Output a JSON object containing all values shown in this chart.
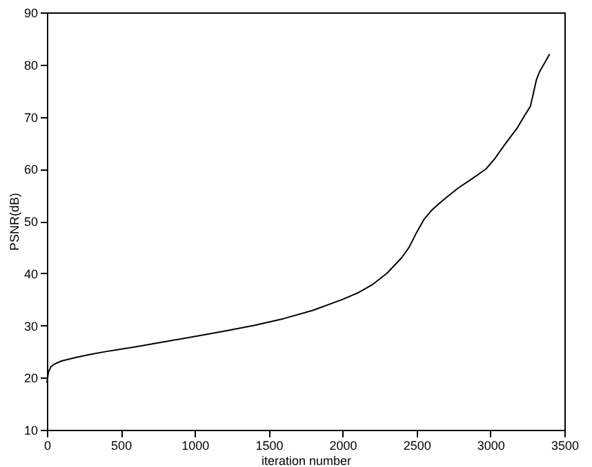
{
  "chart_data": {
    "type": "line",
    "xlabel": "iteration number",
    "ylabel": "PSNR(dB)",
    "x": [
      0,
      10,
      25,
      50,
      100,
      200,
      300,
      400,
      600,
      800,
      1000,
      1200,
      1400,
      1600,
      1800,
      2000,
      2100,
      2200,
      2300,
      2400,
      2450,
      2500,
      2550,
      2600,
      2650,
      2700,
      2780,
      2880,
      2970,
      3030,
      3100,
      3180,
      3230,
      3270,
      3290,
      3310,
      3330,
      3360,
      3400
    ],
    "series": [
      {
        "color": "#000000",
        "values": [
          19,
          21,
          22,
          22.6,
          23.2,
          23.9,
          24.5,
          25,
          25.9,
          26.9,
          27.9,
          28.9,
          30,
          31.3,
          32.9,
          35,
          36.2,
          37.8,
          40,
          43,
          45,
          47.8,
          50.3,
          52,
          53.3,
          54.5,
          56.3,
          58.2,
          60,
          62,
          64.8,
          67.8,
          70.2,
          72,
          74.5,
          77,
          78.5,
          80,
          82
        ]
      }
    ],
    "xlim": [
      0,
      3500
    ],
    "ylim": [
      10,
      90
    ],
    "xticks": [
      0,
      500,
      1000,
      1500,
      2000,
      2500,
      3000,
      3500
    ],
    "yticks": [
      10,
      20,
      30,
      40,
      50,
      60,
      70,
      80,
      90
    ],
    "grid": false,
    "legend": false,
    "line_style": "solid",
    "marker": "none"
  }
}
